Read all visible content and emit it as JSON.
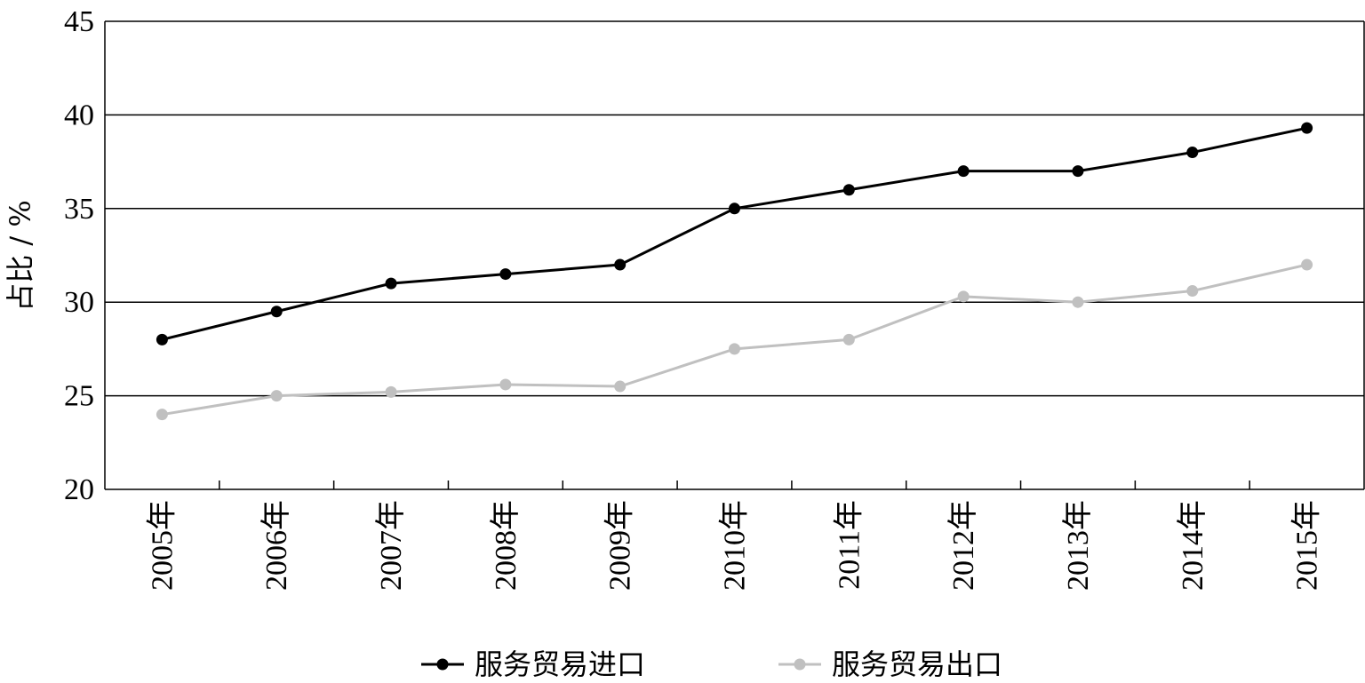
{
  "chart_data": {
    "type": "line",
    "title": "",
    "xlabel": "",
    "ylabel": "占比 / %",
    "x": [
      "2005年",
      "2006年",
      "2007年",
      "2008年",
      "2009年",
      "2010年",
      "2011年",
      "2012年",
      "2013年",
      "2014年",
      "2015年"
    ],
    "ylim": [
      20,
      45
    ],
    "yticks": [
      20,
      25,
      30,
      35,
      40,
      45
    ],
    "grid": "horizontal",
    "legend_position": "bottom",
    "series": [
      {
        "name": "服务贸易进口",
        "color": "#000000",
        "values": [
          28.0,
          29.5,
          31.0,
          31.5,
          32.0,
          35.0,
          36.0,
          37.0,
          37.0,
          38.0,
          39.3
        ]
      },
      {
        "name": "服务贸易出口",
        "color": "#c0c0c0",
        "values": [
          24.0,
          25.0,
          25.2,
          25.6,
          25.5,
          27.5,
          28.0,
          30.3,
          30.0,
          30.6,
          32.0
        ]
      }
    ]
  }
}
